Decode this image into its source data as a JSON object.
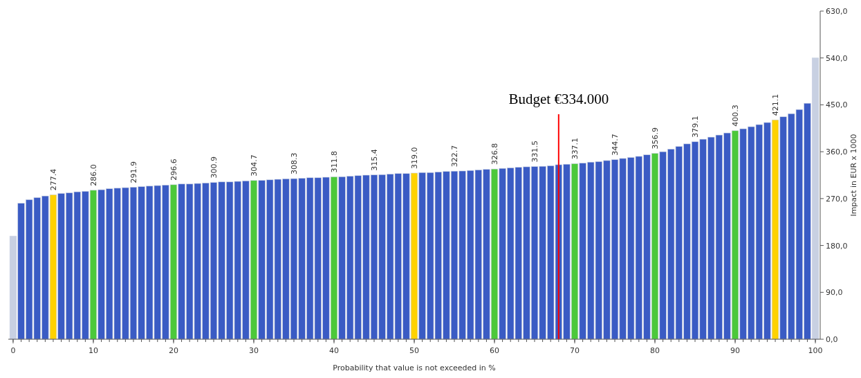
{
  "chart_data": {
    "type": "bar",
    "xlabel": "Probability that value is not exceeded in %",
    "ylabel": "Impact in EUR x 1000",
    "x": [
      0,
      1,
      2,
      3,
      4,
      5,
      6,
      7,
      8,
      9,
      10,
      11,
      12,
      13,
      14,
      15,
      16,
      17,
      18,
      19,
      20,
      21,
      22,
      23,
      24,
      25,
      26,
      27,
      28,
      29,
      30,
      31,
      32,
      33,
      34,
      35,
      36,
      37,
      38,
      39,
      40,
      41,
      42,
      43,
      44,
      45,
      46,
      47,
      48,
      49,
      50,
      51,
      52,
      53,
      54,
      55,
      56,
      57,
      58,
      59,
      60,
      61,
      62,
      63,
      64,
      65,
      66,
      67,
      68,
      69,
      70,
      71,
      72,
      73,
      74,
      75,
      76,
      77,
      78,
      79,
      80,
      81,
      82,
      83,
      84,
      85,
      86,
      87,
      88,
      89,
      90,
      91,
      92,
      93,
      94,
      95,
      96,
      97,
      98,
      99,
      100
    ],
    "values": [
      198,
      261,
      268,
      272,
      275,
      277.4,
      280,
      281,
      283,
      284,
      286.0,
      287,
      289,
      290,
      291,
      291.9,
      293,
      294,
      295,
      296,
      296.6,
      298,
      298,
      299,
      300,
      300.9,
      302,
      302,
      303,
      304,
      304.7,
      305,
      306,
      307,
      308,
      308.3,
      309,
      310,
      310,
      311,
      311.8,
      312,
      313,
      314,
      315,
      315.4,
      316,
      317,
      318,
      318,
      319.0,
      320,
      320,
      321,
      322,
      322.7,
      323,
      324,
      325,
      326,
      326.8,
      328,
      329,
      330,
      331,
      331.5,
      332,
      333,
      335,
      336,
      337.1,
      338,
      340,
      341,
      343,
      344.7,
      347,
      349,
      351,
      354,
      356.9,
      360,
      365,
      370,
      375,
      379.1,
      384,
      388,
      392,
      396,
      400.3,
      404,
      408,
      412,
      416,
      421.1,
      427,
      433,
      441,
      453,
      540
    ],
    "value_labels": [
      null,
      null,
      null,
      null,
      null,
      "277.4",
      null,
      null,
      null,
      null,
      "286.0",
      null,
      null,
      null,
      null,
      "291.9",
      null,
      null,
      null,
      null,
      "296.6",
      null,
      null,
      null,
      null,
      "300.9",
      null,
      null,
      null,
      null,
      "304.7",
      null,
      null,
      null,
      null,
      "308.3",
      null,
      null,
      null,
      null,
      "311.8",
      null,
      null,
      null,
      null,
      "315.4",
      null,
      null,
      null,
      null,
      "319.0",
      null,
      null,
      null,
      null,
      "322.7",
      null,
      null,
      null,
      null,
      "326.8",
      null,
      null,
      null,
      null,
      "331.5",
      null,
      null,
      null,
      null,
      "337.1",
      null,
      null,
      null,
      null,
      "344.7",
      null,
      null,
      null,
      null,
      "356.9",
      null,
      null,
      null,
      null,
      "379.1",
      null,
      null,
      null,
      null,
      "400.3",
      null,
      null,
      null,
      null,
      "421.1",
      null,
      null,
      null,
      null,
      null
    ],
    "colors": [
      "#c8d0e2",
      "#3a5bc4",
      "#3a5bc4",
      "#3a5bc4",
      "#3a5bc4",
      "#ffd200",
      "#3a5bc4",
      "#3a5bc4",
      "#3a5bc4",
      "#3a5bc4",
      "#4cc83a",
      "#3a5bc4",
      "#3a5bc4",
      "#3a5bc4",
      "#3a5bc4",
      "#3a5bc4",
      "#3a5bc4",
      "#3a5bc4",
      "#3a5bc4",
      "#3a5bc4",
      "#4cc83a",
      "#3a5bc4",
      "#3a5bc4",
      "#3a5bc4",
      "#3a5bc4",
      "#3a5bc4",
      "#3a5bc4",
      "#3a5bc4",
      "#3a5bc4",
      "#3a5bc4",
      "#4cc83a",
      "#3a5bc4",
      "#3a5bc4",
      "#3a5bc4",
      "#3a5bc4",
      "#3a5bc4",
      "#3a5bc4",
      "#3a5bc4",
      "#3a5bc4",
      "#3a5bc4",
      "#4cc83a",
      "#3a5bc4",
      "#3a5bc4",
      "#3a5bc4",
      "#3a5bc4",
      "#3a5bc4",
      "#3a5bc4",
      "#3a5bc4",
      "#3a5bc4",
      "#3a5bc4",
      "#ffd200",
      "#3a5bc4",
      "#3a5bc4",
      "#3a5bc4",
      "#3a5bc4",
      "#3a5bc4",
      "#3a5bc4",
      "#3a5bc4",
      "#3a5bc4",
      "#3a5bc4",
      "#4cc83a",
      "#3a5bc4",
      "#3a5bc4",
      "#3a5bc4",
      "#3a5bc4",
      "#3a5bc4",
      "#3a5bc4",
      "#3a5bc4",
      "#3a5bc4",
      "#3a5bc4",
      "#4cc83a",
      "#3a5bc4",
      "#3a5bc4",
      "#3a5bc4",
      "#3a5bc4",
      "#3a5bc4",
      "#3a5bc4",
      "#3a5bc4",
      "#3a5bc4",
      "#3a5bc4",
      "#4cc83a",
      "#3a5bc4",
      "#3a5bc4",
      "#3a5bc4",
      "#3a5bc4",
      "#3a5bc4",
      "#3a5bc4",
      "#3a5bc4",
      "#3a5bc4",
      "#3a5bc4",
      "#4cc83a",
      "#3a5bc4",
      "#3a5bc4",
      "#3a5bc4",
      "#3a5bc4",
      "#ffd200",
      "#3a5bc4",
      "#3a5bc4",
      "#3a5bc4",
      "#3a5bc4",
      "#c8d0e2"
    ],
    "xlim": [
      -0.6,
      100.6
    ],
    "xticks": [
      0,
      10,
      20,
      30,
      40,
      50,
      60,
      70,
      80,
      90,
      100
    ],
    "ylim": [
      0,
      630
    ],
    "yticks": [
      {
        "value": 0,
        "label": "0,0"
      },
      {
        "value": 90,
        "label": "90,0"
      },
      {
        "value": 180,
        "label": "180,0"
      },
      {
        "value": 270,
        "label": "270,0"
      },
      {
        "value": 360,
        "label": "360,0"
      },
      {
        "value": 450,
        "label": "450,0"
      },
      {
        "value": 540,
        "label": "540,0"
      },
      {
        "value": 630,
        "label": "630,0"
      }
    ],
    "ref_lines": [
      {
        "axis": "x",
        "value": 68,
        "label": "Budget €334.000",
        "color": "#ff0000"
      }
    ],
    "grid": false
  }
}
